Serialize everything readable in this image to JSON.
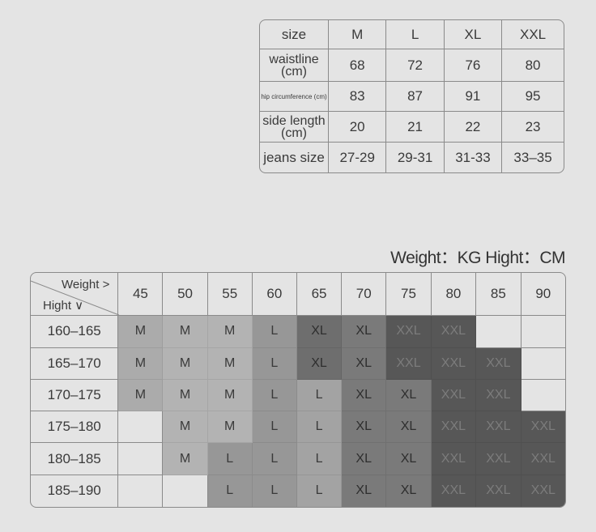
{
  "size_table": {
    "header": [
      "size",
      "M",
      "L",
      "XL",
      "XXL"
    ],
    "rows": [
      {
        "label": "waistline (cm)",
        "values": [
          "68",
          "72",
          "76",
          "80"
        ]
      },
      {
        "label": "hip circumference (cm)",
        "values": [
          "83",
          "87",
          "91",
          "95"
        ]
      },
      {
        "label": "side length (cm)",
        "values": [
          "20",
          "21",
          "22",
          "23"
        ]
      },
      {
        "label": "jeans size",
        "values": [
          "27-29",
          "29-31",
          "31-33",
          "33–35"
        ]
      }
    ]
  },
  "units_caption": "Weight：KG  Hight：CM",
  "weight_height_table": {
    "corner_weight": "Weight >",
    "corner_height": "Hight ∨",
    "weights": [
      "45",
      "50",
      "55",
      "60",
      "65",
      "70",
      "75",
      "80",
      "85",
      "90"
    ],
    "rows": [
      {
        "height": "160–165",
        "sizes": [
          "M",
          "M",
          "M",
          "L",
          "XL",
          "XL",
          "XXL",
          "XXL",
          "",
          ""
        ]
      },
      {
        "height": "165–170",
        "sizes": [
          "M",
          "M",
          "M",
          "L",
          "XL",
          "XL",
          "XXL",
          "XXL",
          "XXL",
          ""
        ]
      },
      {
        "height": "170–175",
        "sizes": [
          "M",
          "M",
          "M",
          "L",
          "L",
          "XL",
          "XL",
          "XXL",
          "XXL",
          ""
        ]
      },
      {
        "height": "175–180",
        "sizes": [
          "",
          "M",
          "M",
          "L",
          "L",
          "XL",
          "XL",
          "XXL",
          "XXL",
          "XXL"
        ]
      },
      {
        "height": "180–185",
        "sizes": [
          "",
          "M",
          "L",
          "L",
          "L",
          "XL",
          "XL",
          "XXL",
          "XXL",
          "XXL"
        ]
      },
      {
        "height": "185–190",
        "sizes": [
          "",
          "",
          "L",
          "L",
          "L",
          "XL",
          "XL",
          "XXL",
          "XXL",
          "XXL"
        ]
      }
    ]
  },
  "colors": {
    "background": "#e4e4e4",
    "M": "#b3b3b3",
    "L": "#979797",
    "XL": "#7a7a7a",
    "XXL": "#575757",
    "text_light": "#3a3a3a",
    "text_dark": "#7c7c7c"
  },
  "shade_overrides": {
    "M@45": "#ababab",
    "XL@65": "#6e6e6e",
    "L@65": "#a3a3a3"
  }
}
